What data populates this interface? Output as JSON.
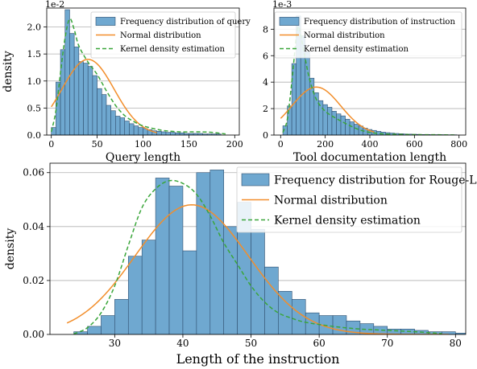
{
  "colors": {
    "bar_fill": "#6fa8d0",
    "bar_edge": "#2f4f6f",
    "normal": "#f28e2b",
    "kde": "#3aa63a",
    "grid": "#b0b0b0"
  },
  "chart_data": [
    {
      "id": "query",
      "type": "bar",
      "title": "",
      "xlabel": "Query length",
      "ylabel": "density",
      "scale_label": "1e-2",
      "xlim": [
        -5,
        205
      ],
      "ylim": [
        0,
        2.35
      ],
      "xticks": [
        0,
        50,
        100,
        150,
        200
      ],
      "yticks": [
        0.0,
        0.5,
        1.0,
        1.5,
        2.0
      ],
      "ytick_labels": [
        "0.0",
        "0.5",
        "1.0",
        "1.5",
        "2.0"
      ],
      "grid": true,
      "legend_position": "top-right",
      "legend": [
        "Frequency distribution of query",
        "Normal distribution",
        "Kernel density estimation"
      ],
      "bin_start": 0,
      "bin_width": 5,
      "values": [
        0.14,
        0.98,
        1.58,
        2.32,
        1.88,
        1.63,
        1.36,
        1.33,
        1.27,
        1.1,
        0.86,
        0.75,
        0.55,
        0.45,
        0.35,
        0.32,
        0.26,
        0.21,
        0.17,
        0.14,
        0.12,
        0.1,
        0.08,
        0.07,
        0.06,
        0.05,
        0.05,
        0.04,
        0.04,
        0.03,
        0.03,
        0.03,
        0.03,
        0.02,
        0.02,
        0.02,
        0.02
      ],
      "normal": {
        "mean": 40,
        "sd": 28.5,
        "x_range": [
          0,
          115
        ]
      },
      "kde_points": [
        [
          0,
          0.06
        ],
        [
          5,
          0.45
        ],
        [
          10,
          1.15
        ],
        [
          15,
          1.8
        ],
        [
          20,
          2.15
        ],
        [
          25,
          1.95
        ],
        [
          30,
          1.65
        ],
        [
          40,
          1.35
        ],
        [
          50,
          1.12
        ],
        [
          60,
          0.82
        ],
        [
          70,
          0.55
        ],
        [
          80,
          0.36
        ],
        [
          90,
          0.25
        ],
        [
          100,
          0.17
        ],
        [
          120,
          0.09
        ],
        [
          140,
          0.06
        ],
        [
          160,
          0.06
        ],
        [
          175,
          0.05
        ],
        [
          190,
          0.02
        ]
      ]
    },
    {
      "id": "instruction",
      "type": "bar",
      "title": "",
      "xlabel": "Tool documentation length",
      "ylabel": "",
      "scale_label": "1e-3",
      "xlim": [
        -30,
        830
      ],
      "ylim": [
        0,
        9.6
      ],
      "xticks": [
        0,
        200,
        400,
        600,
        800
      ],
      "yticks": [
        0,
        2,
        4,
        6,
        8
      ],
      "ytick_labels": [
        "0",
        "2",
        "4",
        "6",
        "8"
      ],
      "grid": true,
      "legend_position": "top-right",
      "legend": [
        "Frequency distribution of instruction",
        "Normal distribution",
        "Kernel density estimation"
      ],
      "bin_start": 10,
      "bin_width": 20,
      "values": [
        0.7,
        2.2,
        5.4,
        9.0,
        7.5,
        6.3,
        4.3,
        3.2,
        2.6,
        2.3,
        2.1,
        1.8,
        1.6,
        1.45,
        1.2,
        1.0,
        0.82,
        0.68,
        0.52,
        0.42,
        0.35,
        0.28,
        0.22,
        0.18,
        0.15,
        0.12,
        0.1,
        0.08,
        0.07,
        0.06,
        0.05,
        0.04,
        0.04,
        0.03,
        0.03,
        0.03,
        0.02,
        0.02,
        0.02
      ],
      "normal": {
        "mean": 160,
        "sd": 110,
        "x_range": [
          0,
          420
        ]
      },
      "kde_points": [
        [
          10,
          0.2
        ],
        [
          30,
          1.2
        ],
        [
          50,
          4.0
        ],
        [
          70,
          7.4
        ],
        [
          80,
          8.2
        ],
        [
          90,
          7.6
        ],
        [
          110,
          5.8
        ],
        [
          130,
          4.2
        ],
        [
          160,
          2.7
        ],
        [
          200,
          1.8
        ],
        [
          250,
          1.25
        ],
        [
          300,
          0.8
        ],
        [
          350,
          0.42
        ],
        [
          400,
          0.2
        ],
        [
          450,
          0.1
        ],
        [
          500,
          0.06
        ],
        [
          600,
          0.03
        ],
        [
          700,
          0.02
        ],
        [
          780,
          0.0
        ]
      ]
    },
    {
      "id": "rouge",
      "type": "bar",
      "title": "",
      "xlabel": "Length of the instruction",
      "ylabel": "density",
      "scale_label": "",
      "xlim": [
        20.5,
        81.5
      ],
      "ylim": [
        0,
        0.0635
      ],
      "xticks": [
        30,
        40,
        50,
        60,
        70,
        80
      ],
      "yticks": [
        0.0,
        0.02,
        0.04,
        0.06
      ],
      "ytick_labels": [
        "0.00",
        "0.02",
        "0.04",
        "0.06"
      ],
      "grid": true,
      "legend_position": "top-right",
      "legend": [
        "Frequency distribution for Rouge-L",
        "Normal distribution",
        "Kernel density estimation"
      ],
      "bin_start": 24,
      "bin_width": 2,
      "values": [
        0.001,
        0.003,
        0.007,
        0.013,
        0.029,
        0.035,
        0.058,
        0.055,
        0.031,
        0.06,
        0.061,
        0.04,
        0.049,
        0.039,
        0.025,
        0.016,
        0.013,
        0.008,
        0.007,
        0.007,
        0.005,
        0.004,
        0.003,
        0.002,
        0.002,
        0.0015,
        0.001,
        0.001,
        0.0005
      ],
      "normal": {
        "mean": 41.3,
        "sd": 8.3,
        "x_range": [
          23,
          79
        ]
      },
      "kde_points": [
        [
          24,
          0.0002
        ],
        [
          26,
          0.0025
        ],
        [
          28,
          0.008
        ],
        [
          30,
          0.018
        ],
        [
          32,
          0.033
        ],
        [
          34,
          0.047
        ],
        [
          36,
          0.054
        ],
        [
          38,
          0.057
        ],
        [
          40,
          0.056
        ],
        [
          42,
          0.052
        ],
        [
          44,
          0.044
        ],
        [
          46,
          0.034
        ],
        [
          48,
          0.026
        ],
        [
          50,
          0.018
        ],
        [
          52,
          0.012
        ],
        [
          54,
          0.008
        ],
        [
          56,
          0.006
        ],
        [
          58,
          0.0045
        ],
        [
          62,
          0.003
        ],
        [
          66,
          0.002
        ],
        [
          70,
          0.0015
        ],
        [
          74,
          0.001
        ],
        [
          78,
          0.0003
        ]
      ]
    }
  ]
}
